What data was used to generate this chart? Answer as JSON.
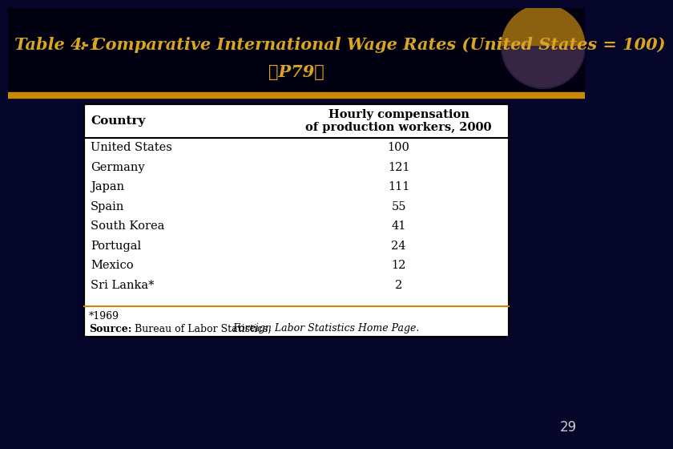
{
  "title_part1": "Table 4-1",
  "title_part2": ": Comparative International Wage Rates (United States = 100)",
  "title_line2": "（P79）",
  "header_col1": "Country",
  "header_col2_line1": "Hourly compensation",
  "header_col2_line2": "of production workers, 2000",
  "countries": [
    "United States",
    "Germany",
    "Japan",
    "Spain",
    "South Korea",
    "Portugal",
    "Mexico",
    "Sri Lanka*"
  ],
  "values": [
    "100",
    "121",
    "111",
    "55",
    "41",
    "24",
    "12",
    "2"
  ],
  "footnote": "*1969",
  "source_bold": "Source:",
  "source_regular": "  Bureau of Labor Statistics, ",
  "source_italic": "Foreign Labor Statistics Home Page.",
  "page_number": "29",
  "bg_color": "#000000",
  "title_color": "#DAA520",
  "table_bg": "#ffffff",
  "page_num_color": "#cccccc",
  "slide_bg": "#05052a",
  "orange_bar_color": "#CC8800"
}
